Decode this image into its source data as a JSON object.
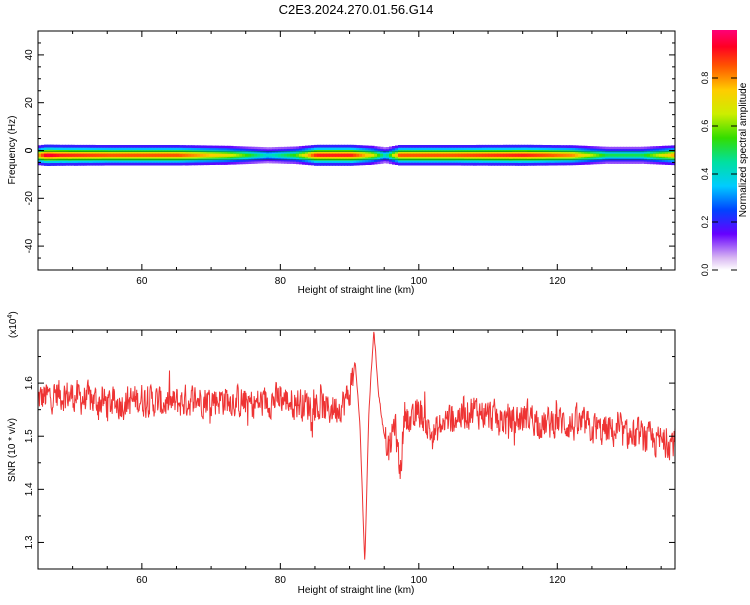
{
  "title": "C2E3.2024.270.01.56.G14",
  "colorbar": {
    "label": "Normalized spectral amplitude",
    "ticks": [
      "0.0",
      "0.2",
      "0.4",
      "0.6",
      "0.8"
    ],
    "tick_values": [
      0.0,
      0.2,
      0.4,
      0.6,
      0.8
    ]
  },
  "chart_data": [
    {
      "type": "heatmap",
      "title": "C2E3.2024.270.01.56.G14",
      "xlabel": "Height of straight line (km)",
      "ylabel": "Frequency (Hz)",
      "xlim": [
        45,
        137
      ],
      "ylim": [
        -50,
        50
      ],
      "xticks": [
        60,
        80,
        100,
        120
      ],
      "yticks": [
        -40,
        -20,
        0,
        20,
        40
      ],
      "colorbar_label": "Normalized spectral amplitude",
      "colorbar_range": [
        0,
        1
      ],
      "ridge_frequency_hz": -2,
      "amplitude_profile": [
        {
          "x": 45,
          "v": 0.8
        },
        {
          "x": 46,
          "v": 0.95
        },
        {
          "x": 48,
          "v": 0.9
        },
        {
          "x": 55,
          "v": 0.85
        },
        {
          "x": 65,
          "v": 0.85
        },
        {
          "x": 72,
          "v": 0.7
        },
        {
          "x": 78,
          "v": 0.4
        },
        {
          "x": 82,
          "v": 0.55
        },
        {
          "x": 85,
          "v": 0.9
        },
        {
          "x": 90,
          "v": 0.9
        },
        {
          "x": 93,
          "v": 0.7
        },
        {
          "x": 95,
          "v": 0.4
        },
        {
          "x": 97,
          "v": 0.85
        },
        {
          "x": 105,
          "v": 0.85
        },
        {
          "x": 115,
          "v": 0.9
        },
        {
          "x": 122,
          "v": 0.8
        },
        {
          "x": 127,
          "v": 0.5
        },
        {
          "x": 132,
          "v": 0.5
        },
        {
          "x": 137,
          "v": 0.8
        }
      ]
    },
    {
      "type": "line",
      "xlabel": "Height of straight line (km)",
      "ylabel": "SNR (10 * v/v)",
      "y_multiplier": "(x10",
      "y_multiplier_exp": "4",
      "y_multiplier_close": ")",
      "xlim": [
        45,
        137
      ],
      "ylim": [
        1.25,
        1.7
      ],
      "xticks": [
        60,
        80,
        100,
        120
      ],
      "yticks": [
        1.3,
        1.4,
        1.5,
        1.6
      ],
      "ytick_labels": [
        "1.3",
        "1.4",
        "1.5",
        "1.6"
      ],
      "line_color": "#ee3333",
      "series": [
        {
          "x": [
            45,
            48,
            52,
            56,
            60,
            64,
            68,
            72,
            76,
            80,
            84,
            87,
            89,
            90,
            90.8,
            91.5,
            92.2,
            92.8,
            93.5,
            94.2,
            95,
            95.8,
            96.5,
            97.3,
            98,
            99,
            100,
            102,
            104,
            106,
            108,
            110,
            112,
            114,
            116,
            118,
            120,
            122,
            124,
            126,
            128,
            130,
            132,
            134,
            137
          ],
          "y": [
            1.57,
            1.58,
            1.57,
            1.56,
            1.57,
            1.56,
            1.57,
            1.57,
            1.56,
            1.57,
            1.56,
            1.55,
            1.56,
            1.58,
            1.64,
            1.52,
            1.26,
            1.55,
            1.7,
            1.58,
            1.5,
            1.47,
            1.53,
            1.43,
            1.55,
            1.52,
            1.55,
            1.5,
            1.53,
            1.54,
            1.55,
            1.54,
            1.53,
            1.53,
            1.54,
            1.52,
            1.53,
            1.52,
            1.52,
            1.51,
            1.51,
            1.5,
            1.5,
            1.49,
            1.49
          ]
        }
      ]
    }
  ]
}
